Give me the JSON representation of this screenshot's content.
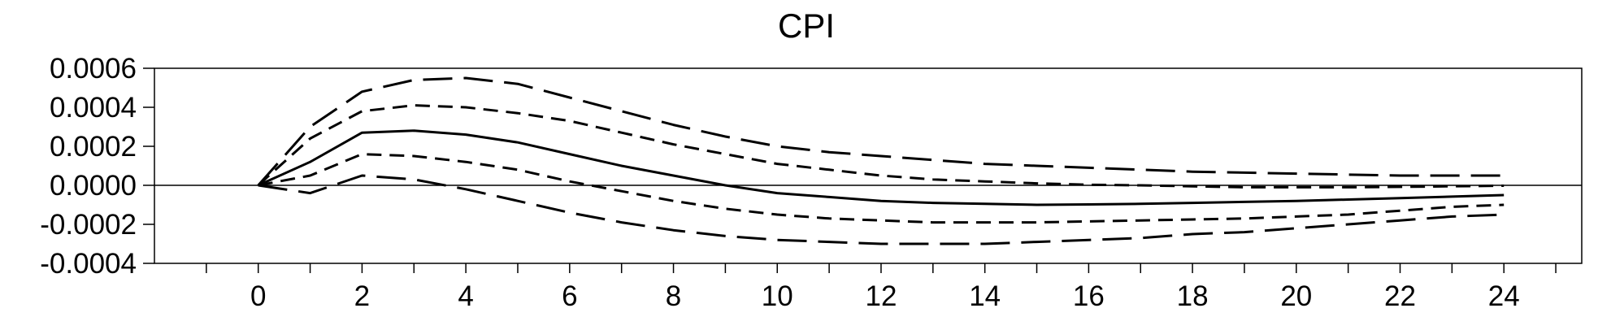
{
  "chart_data": {
    "type": "line",
    "title": "CPI",
    "xlabel": "",
    "ylabel": "",
    "xlim": [
      -2,
      25.5
    ],
    "ylim": [
      -0.0004,
      0.0006
    ],
    "x_tick_labels": [
      "0",
      "2",
      "4",
      "6",
      "8",
      "10",
      "12",
      "14",
      "16",
      "18",
      "20",
      "22",
      "24"
    ],
    "y_tick_labels": [
      "0.0006",
      "0.0004",
      "0.0002",
      "0.0000",
      "-0.0002",
      "-0.0004"
    ],
    "y_tick_values": [
      0.0006,
      0.0004,
      0.0002,
      0.0,
      -0.0002,
      -0.0004
    ],
    "zero_line": true,
    "grid": false,
    "x": [
      0,
      1,
      2,
      3,
      4,
      5,
      6,
      7,
      8,
      9,
      10,
      11,
      12,
      13,
      14,
      15,
      16,
      17,
      18,
      19,
      20,
      21,
      22,
      23,
      24
    ],
    "series": [
      {
        "style": "solid",
        "values": [
          0.0,
          0.00012,
          0.00027,
          0.00028,
          0.00026,
          0.00022,
          0.00016,
          0.0001,
          5e-05,
          0.0,
          -4e-05,
          -6e-05,
          -8e-05,
          -9e-05,
          -9.5e-05,
          -0.0001,
          -9.8e-05,
          -9.5e-05,
          -9e-05,
          -8.5e-05,
          -8e-05,
          -7.3e-05,
          -6.6e-05,
          -5.8e-05,
          -5e-05
        ]
      },
      {
        "style": "dashed-short",
        "values": [
          0.0,
          0.00024,
          0.00038,
          0.00041,
          0.0004,
          0.00037,
          0.00033,
          0.00027,
          0.00021,
          0.00016,
          0.00011,
          8e-05,
          5e-05,
          3e-05,
          2e-05,
          1e-05,
          3e-06,
          0.0,
          -5e-06,
          -1e-05,
          -1e-05,
          -1e-05,
          -8e-06,
          -5e-06,
          -2e-06
        ]
      },
      {
        "style": "dashed-short",
        "values": [
          0.0,
          5e-05,
          0.00016,
          0.00015,
          0.00012,
          8e-05,
          2e-05,
          -3e-05,
          -8e-05,
          -0.00012,
          -0.00015,
          -0.00017,
          -0.00018,
          -0.00019,
          -0.00019,
          -0.00019,
          -0.000185,
          -0.00018,
          -0.000175,
          -0.00017,
          -0.00016,
          -0.00015,
          -0.00013,
          -0.00011,
          -0.0001
        ]
      },
      {
        "style": "dashed-long",
        "values": [
          0.0,
          0.0003,
          0.00048,
          0.00054,
          0.00055,
          0.00052,
          0.00045,
          0.00038,
          0.00031,
          0.00025,
          0.0002,
          0.00017,
          0.00015,
          0.00013,
          0.00011,
          0.0001,
          9e-05,
          8e-05,
          7e-05,
          6.5e-05,
          6e-05,
          5.5e-05,
          5e-05,
          5e-05,
          5e-05
        ]
      },
      {
        "style": "dashed-long",
        "values": [
          0.0,
          -4e-05,
          5e-05,
          3e-05,
          -2e-05,
          -8e-05,
          -0.00014,
          -0.00019,
          -0.00023,
          -0.00026,
          -0.00028,
          -0.00029,
          -0.0003,
          -0.0003,
          -0.0003,
          -0.00029,
          -0.00028,
          -0.00027,
          -0.00025,
          -0.00024,
          -0.00022,
          -0.0002,
          -0.00018,
          -0.00016,
          -0.00015
        ]
      }
    ]
  }
}
